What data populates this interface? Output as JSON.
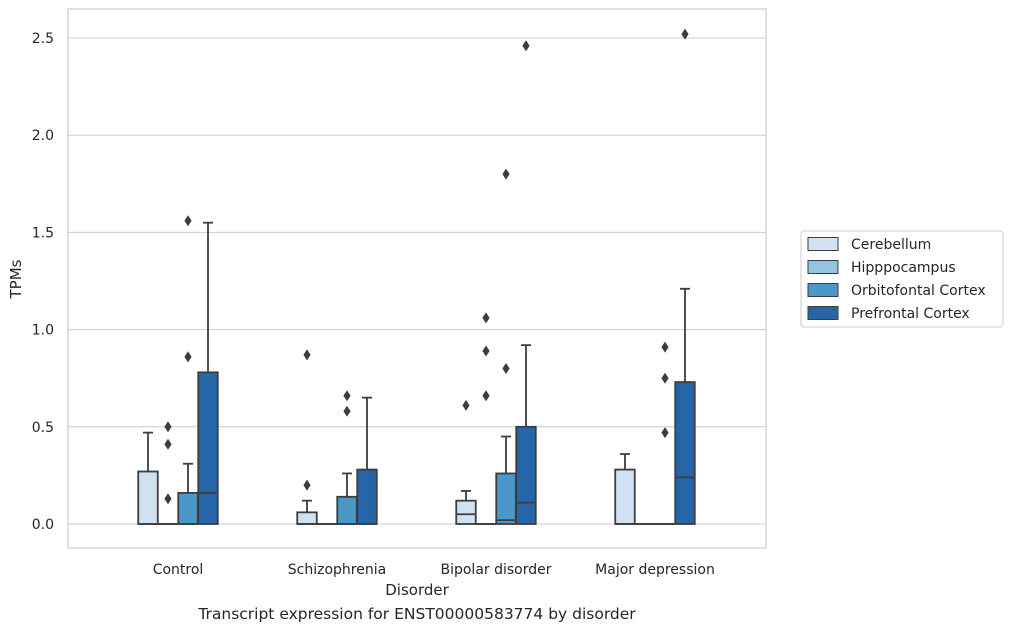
{
  "caption": "Transcript expression for ENST00000583774 by disorder",
  "chart_data": {
    "type": "box",
    "title": "",
    "xlabel": "Disorder",
    "ylabel": "TPMs",
    "ylim": [
      -0.12,
      2.65
    ],
    "yticks": [
      0.0,
      0.5,
      1.0,
      1.5,
      2.0,
      2.5
    ],
    "ytick_labels": [
      "0.0",
      "0.5",
      "1.0",
      "1.5",
      "2.0",
      "2.5"
    ],
    "grid": "horizontal",
    "legend_position": "right",
    "categories": [
      "Control",
      "Schizophrenia",
      "Bipolar disorder",
      "Major depression"
    ],
    "series": [
      {
        "name": "Cerebellum",
        "color": "#d0e1f2",
        "boxes": [
          {
            "q1": 0.0,
            "median": 0.0,
            "q3": 0.27,
            "whisker_low": 0.0,
            "whisker_high": 0.47,
            "outliers": []
          },
          {
            "q1": 0.0,
            "median": 0.0,
            "q3": 0.06,
            "whisker_low": 0.0,
            "whisker_high": 0.12,
            "outliers": [
              0.2,
              0.87
            ]
          },
          {
            "q1": 0.0,
            "median": 0.05,
            "q3": 0.12,
            "whisker_low": 0.0,
            "whisker_high": 0.17,
            "outliers": [
              0.61
            ]
          },
          {
            "q1": 0.0,
            "median": 0.0,
            "q3": 0.28,
            "whisker_low": 0.0,
            "whisker_high": 0.36,
            "outliers": []
          }
        ]
      },
      {
        "name": "Hipppocampus",
        "color": "#94c4df",
        "boxes": [
          {
            "q1": 0.0,
            "median": 0.0,
            "q3": 0.0,
            "whisker_low": 0.0,
            "whisker_high": 0.0,
            "outliers": [
              0.13,
              0.41,
              0.5
            ]
          },
          {
            "q1": 0.0,
            "median": 0.0,
            "q3": 0.0,
            "whisker_low": 0.0,
            "whisker_high": 0.0,
            "outliers": []
          },
          {
            "q1": 0.0,
            "median": 0.0,
            "q3": 0.0,
            "whisker_low": 0.0,
            "whisker_high": 0.0,
            "outliers": [
              0.66,
              0.89,
              1.06
            ]
          },
          {
            "q1": 0.0,
            "median": 0.0,
            "q3": 0.0,
            "whisker_low": 0.0,
            "whisker_high": 0.0,
            "outliers": []
          }
        ]
      },
      {
        "name": "Orbitofontal Cortex",
        "color": "#4a98c9",
        "boxes": [
          {
            "q1": 0.0,
            "median": 0.0,
            "q3": 0.16,
            "whisker_low": 0.0,
            "whisker_high": 0.31,
            "outliers": [
              0.86,
              1.56
            ]
          },
          {
            "q1": 0.0,
            "median": 0.0,
            "q3": 0.14,
            "whisker_low": 0.0,
            "whisker_high": 0.26,
            "outliers": [
              0.58,
              0.66
            ]
          },
          {
            "q1": 0.0,
            "median": 0.02,
            "q3": 0.26,
            "whisker_low": 0.0,
            "whisker_high": 0.45,
            "outliers": [
              0.8,
              1.8
            ]
          },
          {
            "q1": 0.0,
            "median": 0.0,
            "q3": 0.0,
            "whisker_low": 0.0,
            "whisker_high": 0.0,
            "outliers": [
              0.47,
              0.75,
              0.91
            ]
          }
        ]
      },
      {
        "name": "Prefrontal Cortex",
        "color": "#2666a8",
        "boxes": [
          {
            "q1": 0.0,
            "median": 0.16,
            "q3": 0.78,
            "whisker_low": 0.0,
            "whisker_high": 1.55,
            "outliers": []
          },
          {
            "q1": 0.0,
            "median": 0.0,
            "q3": 0.28,
            "whisker_low": 0.0,
            "whisker_high": 0.65,
            "outliers": []
          },
          {
            "q1": 0.0,
            "median": 0.11,
            "q3": 0.5,
            "whisker_low": 0.0,
            "whisker_high": 0.92,
            "outliers": [
              2.46
            ]
          },
          {
            "q1": 0.0,
            "median": 0.24,
            "q3": 0.73,
            "whisker_low": 0.0,
            "whisker_high": 1.21,
            "outliers": [
              2.52
            ]
          }
        ]
      }
    ]
  }
}
